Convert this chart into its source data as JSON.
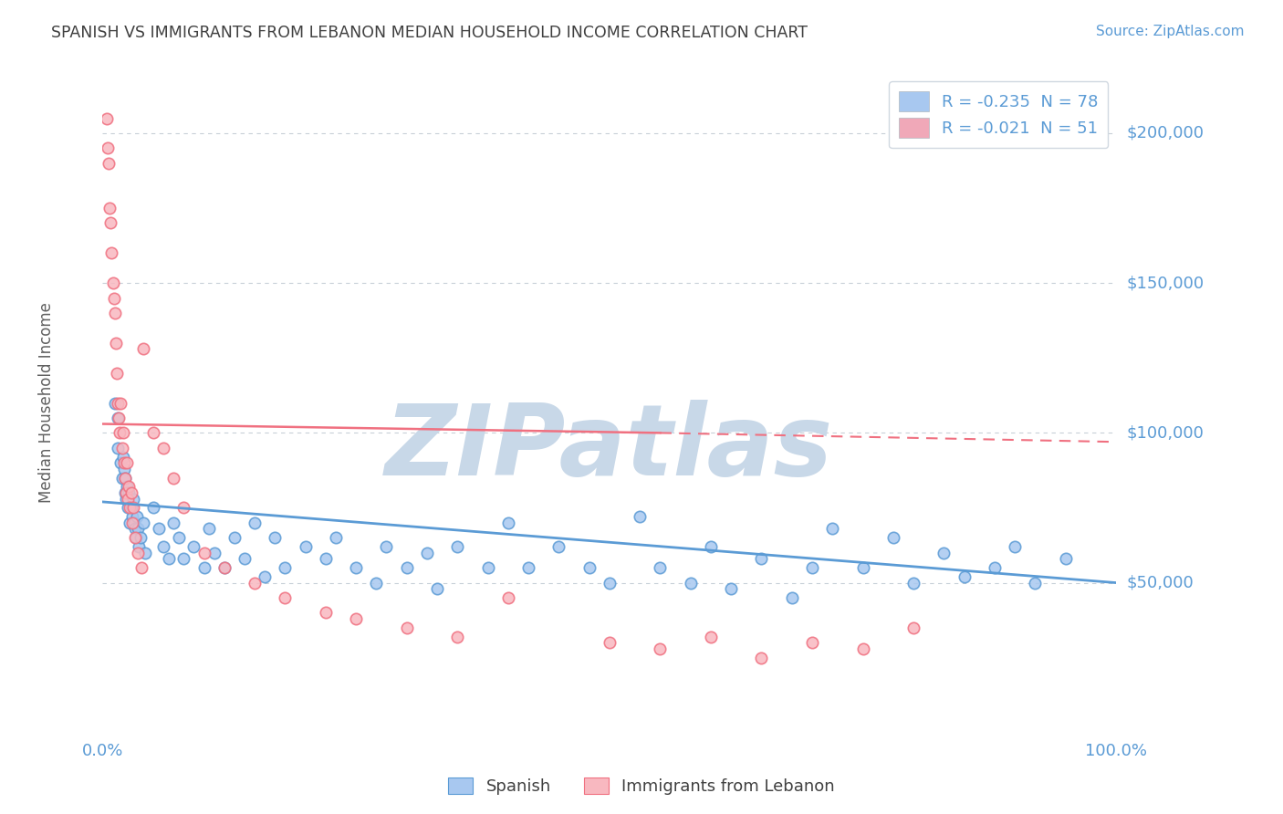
{
  "title": "SPANISH VS IMMIGRANTS FROM LEBANON MEDIAN HOUSEHOLD INCOME CORRELATION CHART",
  "source_text": "Source: ZipAtlas.com",
  "ylabel": "Median Household Income",
  "xlim": [
    0.0,
    100.0
  ],
  "ylim": [
    0,
    220000
  ],
  "yticks": [
    0,
    50000,
    100000,
    150000,
    200000
  ],
  "ytick_labels": [
    "",
    "$50,000",
    "$100,000",
    "$150,000",
    "$200,000"
  ],
  "xtick_labels": [
    "0.0%",
    "100.0%"
  ],
  "legend_entries": [
    {
      "label": "R = -0.235  N = 78",
      "color": "#a8c8f0"
    },
    {
      "label": "R = -0.021  N = 51",
      "color": "#f0a8b8"
    }
  ],
  "blue_color": "#5b9bd5",
  "pink_color": "#f07080",
  "background_color": "#ffffff",
  "watermark_text": "ZIPatlas",
  "watermark_color": "#c8d8e8",
  "title_color": "#404040",
  "axis_color": "#5b9bd5",
  "grid_color": "#c8d0d8",
  "spanish_x": [
    1.2,
    1.5,
    1.5,
    1.8,
    1.9,
    2.0,
    2.1,
    2.2,
    2.2,
    2.3,
    2.4,
    2.5,
    2.6,
    2.7,
    2.8,
    2.9,
    3.0,
    3.1,
    3.2,
    3.3,
    3.4,
    3.5,
    3.6,
    3.7,
    4.0,
    4.2,
    5.0,
    5.5,
    6.0,
    6.5,
    7.0,
    7.5,
    8.0,
    9.0,
    10.0,
    10.5,
    11.0,
    12.0,
    13.0,
    14.0,
    15.0,
    16.0,
    17.0,
    18.0,
    20.0,
    22.0,
    23.0,
    25.0,
    27.0,
    28.0,
    30.0,
    32.0,
    33.0,
    35.0,
    38.0,
    40.0,
    42.0,
    45.0,
    48.0,
    50.0,
    53.0,
    55.0,
    58.0,
    60.0,
    62.0,
    65.0,
    68.0,
    70.0,
    72.0,
    75.0,
    78.0,
    80.0,
    83.0,
    85.0,
    88.0,
    90.0,
    92.0,
    95.0
  ],
  "spanish_y": [
    110000,
    105000,
    95000,
    90000,
    85000,
    92000,
    88000,
    80000,
    85000,
    78000,
    82000,
    75000,
    80000,
    70000,
    75000,
    72000,
    78000,
    70000,
    68000,
    65000,
    72000,
    68000,
    62000,
    65000,
    70000,
    60000,
    75000,
    68000,
    62000,
    58000,
    70000,
    65000,
    58000,
    62000,
    55000,
    68000,
    60000,
    55000,
    65000,
    58000,
    70000,
    52000,
    65000,
    55000,
    62000,
    58000,
    65000,
    55000,
    50000,
    62000,
    55000,
    60000,
    48000,
    62000,
    55000,
    70000,
    55000,
    62000,
    55000,
    50000,
    72000,
    55000,
    50000,
    62000,
    48000,
    58000,
    45000,
    55000,
    68000,
    55000,
    65000,
    50000,
    60000,
    52000,
    55000,
    62000,
    50000,
    58000
  ],
  "lebanon_x": [
    0.4,
    0.5,
    0.6,
    0.7,
    0.8,
    0.9,
    1.0,
    1.1,
    1.2,
    1.3,
    1.4,
    1.5,
    1.6,
    1.7,
    1.8,
    1.9,
    2.0,
    2.1,
    2.2,
    2.3,
    2.4,
    2.5,
    2.6,
    2.7,
    2.8,
    2.9,
    3.0,
    3.2,
    3.5,
    3.8,
    4.0,
    5.0,
    6.0,
    7.0,
    8.0,
    10.0,
    12.0,
    15.0,
    18.0,
    22.0,
    25.0,
    30.0,
    35.0,
    40.0,
    50.0,
    55.0,
    60.0,
    65.0,
    70.0,
    75.0,
    80.0
  ],
  "lebanon_y": [
    205000,
    195000,
    190000,
    175000,
    170000,
    160000,
    150000,
    145000,
    140000,
    130000,
    120000,
    110000,
    105000,
    100000,
    110000,
    95000,
    100000,
    90000,
    85000,
    80000,
    90000,
    78000,
    82000,
    75000,
    80000,
    70000,
    75000,
    65000,
    60000,
    55000,
    128000,
    100000,
    95000,
    85000,
    75000,
    60000,
    55000,
    50000,
    45000,
    40000,
    38000,
    35000,
    32000,
    45000,
    30000,
    28000,
    32000,
    25000,
    30000,
    28000,
    35000
  ],
  "blue_line_x": [
    0,
    100
  ],
  "blue_line_y": [
    77000,
    50000
  ],
  "pink_line_x": [
    0,
    100
  ],
  "pink_line_y": [
    103000,
    97000
  ]
}
